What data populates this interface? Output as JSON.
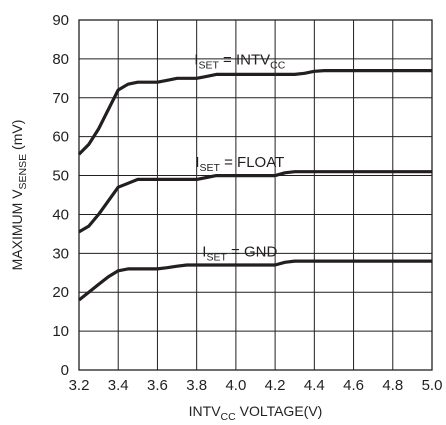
{
  "chart_data": {
    "type": "line",
    "xlabel": "INTVCC VOLTAGE(V)",
    "xlabel_parts": {
      "a": "INTV",
      "sub": "CC",
      "b": " VOLTAGE(V)"
    },
    "ylabel": "MAXIMUM VSENSE (mV)",
    "ylabel_parts": {
      "a": "MAXIMUM V",
      "sub": "SENSE",
      "b": " (mV)"
    },
    "xlim": [
      3.2,
      5.0
    ],
    "ylim": [
      0,
      90
    ],
    "x_ticks": [
      3.2,
      3.4,
      3.6,
      3.8,
      4.0,
      4.2,
      4.4,
      4.6,
      4.8,
      5.0
    ],
    "x_tick_labels": [
      "3.2",
      "3.4",
      "3.6",
      "3.8",
      "4.0",
      "4.2",
      "4.4",
      "4.6",
      "4.8",
      "5.0"
    ],
    "y_ticks": [
      0,
      10,
      20,
      30,
      40,
      50,
      60,
      70,
      80,
      90
    ],
    "y_tick_labels": [
      "0",
      "10",
      "20",
      "30",
      "40",
      "50",
      "60",
      "70",
      "80",
      "90"
    ],
    "grid": true,
    "series": [
      {
        "name": "ISET = INTVCC",
        "label_parts": {
          "a": "I",
          "sub1": "SET",
          "b": " = INTV",
          "sub2": "CC"
        },
        "x": [
          3.2,
          3.25,
          3.3,
          3.35,
          3.4,
          3.45,
          3.5,
          3.55,
          3.6,
          3.65,
          3.7,
          3.75,
          3.8,
          3.85,
          3.9,
          3.95,
          4.0,
          4.1,
          4.2,
          4.3,
          4.35,
          4.4,
          4.45,
          4.5,
          4.6,
          4.8,
          5.0
        ],
        "y": [
          55.5,
          58,
          62,
          67,
          72,
          73.5,
          74,
          74,
          74,
          74.5,
          75,
          75,
          75,
          75.5,
          76,
          76,
          76,
          76,
          76,
          76,
          76.3,
          76.8,
          77,
          77,
          77,
          77,
          77
        ]
      },
      {
        "name": "ISET = FLOAT",
        "label_parts": {
          "a": "I",
          "sub1": "SET",
          "b": " = FLOAT",
          "sub2": ""
        },
        "x": [
          3.2,
          3.25,
          3.3,
          3.35,
          3.4,
          3.45,
          3.5,
          3.55,
          3.6,
          3.7,
          3.8,
          3.85,
          3.9,
          3.95,
          4.0,
          4.1,
          4.2,
          4.25,
          4.3,
          4.4,
          4.6,
          4.8,
          5.0
        ],
        "y": [
          35.5,
          37,
          40,
          43.5,
          47,
          48,
          49,
          49,
          49,
          49,
          49,
          49.5,
          50,
          50,
          50,
          50,
          50,
          50.7,
          51,
          51,
          51,
          51,
          51
        ]
      },
      {
        "name": "ISET = GND",
        "label_parts": {
          "a": "I",
          "sub1": "SET",
          "b": " = GND",
          "sub2": ""
        },
        "x": [
          3.2,
          3.25,
          3.3,
          3.35,
          3.4,
          3.45,
          3.5,
          3.55,
          3.6,
          3.65,
          3.7,
          3.75,
          3.8,
          3.9,
          4.0,
          4.1,
          4.2,
          4.25,
          4.3,
          4.4,
          4.6,
          4.8,
          5.0
        ],
        "y": [
          18,
          20,
          22,
          24,
          25.5,
          26,
          26,
          26,
          26,
          26.3,
          26.7,
          27,
          27,
          27,
          27,
          27,
          27,
          27.7,
          28,
          28,
          28,
          28,
          28
        ]
      }
    ],
    "annotations": [
      {
        "series": 0,
        "x": 4.02,
        "y": 78.6
      },
      {
        "series": 1,
        "x": 4.02,
        "y": 52.2
      },
      {
        "series": 2,
        "x": 4.02,
        "y": 29.2
      }
    ]
  }
}
